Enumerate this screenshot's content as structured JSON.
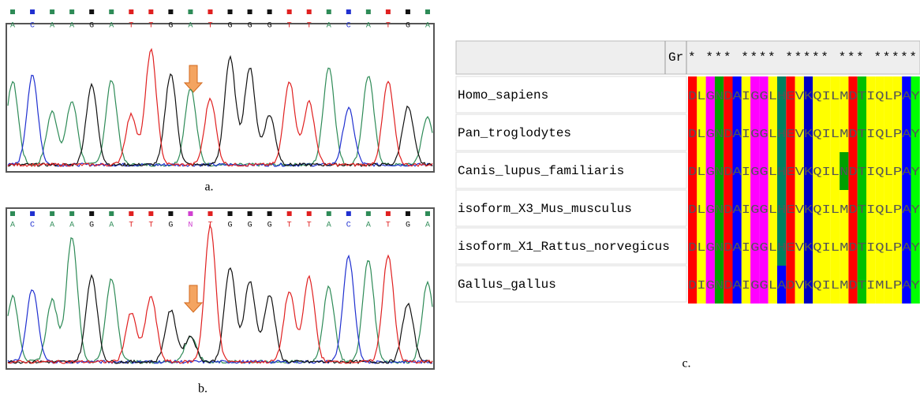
{
  "chromatograms": [
    {
      "label": "a.",
      "bases": [
        "A",
        "C",
        "A",
        "A",
        "G",
        "A",
        "T",
        "T",
        "G",
        "A",
        "T",
        "G",
        "G",
        "G",
        "T",
        "T",
        "A",
        "C",
        "A",
        "T",
        "G",
        "A"
      ]
    },
    {
      "label": "b.",
      "bases": [
        "A",
        "C",
        "A",
        "A",
        "G",
        "A",
        "T",
        "T",
        "G",
        "N",
        "T",
        "G",
        "G",
        "G",
        "T",
        "T",
        "A",
        "C",
        "A",
        "T",
        "G",
        "A"
      ]
    }
  ],
  "alignment": {
    "label": "c.",
    "column_header": "Gr",
    "conservation": "* *** **** ***** *** *****",
    "rows": [
      {
        "name": "Homo_sapiens",
        "sequence": "DLGNDAIGGLHEVKQILMDTIQLPAY"
      },
      {
        "name": "Pan_troglodytes",
        "sequence": "DLGNDAIGGLHEVKQILMDTIQLPAY"
      },
      {
        "name": "Canis_lupus_familiaris",
        "sequence": "DLGNDAIGGLHEVKQILNDTIQLPAY"
      },
      {
        "name": "isoform_X3_Mus_musculus",
        "sequence": "DLGNDAIGGLHEVKQILMDTIQLPAY"
      },
      {
        "name": "isoform_X1_Rattus_norvegicus",
        "sequence": "DLGNDAIGGLHEVKQILMDTIQLPAY"
      },
      {
        "name": "Gallus_gallus",
        "sequence": "DIGNDAIGGLADVKQILMDTIMLPAY"
      }
    ]
  }
}
